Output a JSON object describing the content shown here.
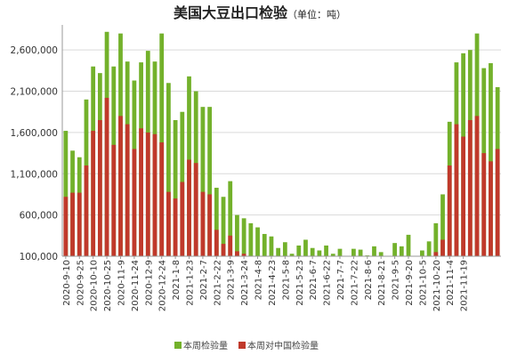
{
  "chart_data": {
    "type": "bar",
    "title": "美国大豆出口检验",
    "subtitle": "（单位：吨）",
    "xlabel": "",
    "ylabel": "",
    "ylim": [
      100000,
      2850000
    ],
    "yticks": [
      "2,600,000",
      "2,100,000",
      "1,600,000",
      "1,100,000",
      "600,000",
      "100,000"
    ],
    "ytick_values": [
      2600000,
      2100000,
      1600000,
      1100000,
      600000,
      100000
    ],
    "grid": true,
    "legend_position": "bottom-center",
    "colors": {
      "series_total": "#73b12b",
      "series_china": "#c0392b",
      "grid": "#d9d9d9",
      "axis": "#999999"
    },
    "xtick_labels": [
      "2020-9-10",
      "2020-9-25",
      "2020-10-10",
      "2020-10-25",
      "2020-11-9",
      "2020-11-24",
      "2020-12-9",
      "2020-12-24",
      "2021-1-8",
      "2021-1-23",
      "2021-2-7",
      "2021-2-22",
      "2021-3-9",
      "2021-3-24",
      "2021-4-8",
      "2021-4-23",
      "2021-5-8",
      "2021-5-23",
      "2021-6-7",
      "2021-6-22",
      "2021-7-7",
      "2021-7-22",
      "2021-8-6",
      "2021-8-21",
      "2021-9-5",
      "2021-9-20",
      "2021-10-5",
      "2021-10-20",
      "2021-11-4",
      "2021-11-19"
    ],
    "series": [
      {
        "name": "本周检验量",
        "values": [
          1620000,
          1380000,
          1300000,
          2000000,
          2400000,
          2320000,
          2820000,
          2400000,
          2800000,
          2460000,
          2230000,
          2450000,
          2590000,
          2460000,
          2800000,
          2200000,
          1750000,
          1850000,
          2280000,
          2100000,
          1910000,
          1910000,
          930000,
          820000,
          1010000,
          600000,
          560000,
          500000,
          450000,
          370000,
          340000,
          200000,
          270000,
          130000,
          230000,
          300000,
          200000,
          170000,
          230000,
          130000,
          190000,
          80000,
          190000,
          180000,
          110000,
          220000,
          150000,
          100000,
          260000,
          220000,
          360000,
          20000,
          170000,
          280000,
          500000,
          850000,
          1730000,
          2450000,
          2560000,
          2600000,
          2800000,
          2380000,
          2440000,
          2150000
        ]
      },
      {
        "name": "本周对中国检验量",
        "values": [
          820000,
          870000,
          870000,
          1200000,
          1620000,
          1750000,
          2020000,
          1450000,
          1800000,
          1700000,
          1400000,
          1650000,
          1600000,
          1580000,
          1480000,
          880000,
          800000,
          1000000,
          1270000,
          1230000,
          880000,
          850000,
          420000,
          250000,
          350000,
          160000,
          130000,
          50000,
          100000,
          20000,
          10000,
          0,
          20000,
          0,
          0,
          10000,
          0,
          0,
          10000,
          0,
          0,
          0,
          0,
          0,
          0,
          0,
          0,
          0,
          0,
          0,
          0,
          0,
          0,
          0,
          150000,
          300000,
          1200000,
          1700000,
          1550000,
          1750000,
          1800000,
          1350000,
          1250000,
          1400000
        ]
      }
    ]
  }
}
